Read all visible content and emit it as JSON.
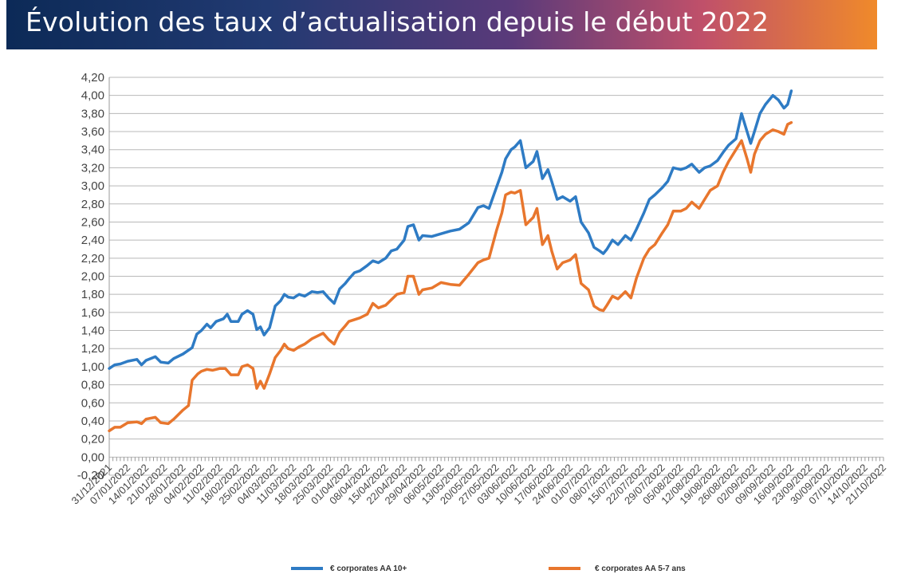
{
  "header": {
    "title": "Évolution des taux d’actualisation depuis le début 2022"
  },
  "chart_data": {
    "type": "line",
    "title": "Évolution des taux d’actualisation depuis le début 2022",
    "ylim": [
      -0.2,
      4.2
    ],
    "yticks": [
      "4,20",
      "4,00",
      "3,80",
      "3,60",
      "3,40",
      "3,20",
      "3,00",
      "2,80",
      "2,60",
      "2,40",
      "2,20",
      "2,00",
      "1,80",
      "1,60",
      "1,40",
      "1,20",
      "1,00",
      "0,80",
      "0,60",
      "0,40",
      "0,20",
      "0,00",
      "-0,20"
    ],
    "x_labels": [
      "31/12/2021",
      "07/01/2022",
      "14/01/2022",
      "21/01/2022",
      "28/01/2022",
      "04/02/2022",
      "11/02/2022",
      "18/02/2022",
      "25/02/2022",
      "04/03/2022",
      "11/03/2022",
      "18/03/2022",
      "25/03/2022",
      "01/04/2022",
      "08/04/2022",
      "15/04/2022",
      "22/04/2022",
      "29/04/2022",
      "06/05/2022",
      "13/05/2022",
      "20/05/2022",
      "27/05/2022",
      "03/06/2022",
      "10/06/2022",
      "17/06/2022",
      "24/06/2022",
      "01/07/2022",
      "08/07/2022",
      "15/07/2022",
      "22/07/2022",
      "29/07/2022",
      "05/08/2022",
      "12/08/2022",
      "19/08/2022",
      "26/08/2022",
      "02/09/2022",
      "09/09/2022",
      "16/09/2022",
      "23/09/2022",
      "30/09/2022",
      "07/10/2022",
      "14/10/2022",
      "21/10/2022"
    ],
    "grid": true,
    "legend_position": "bottom",
    "series": [
      {
        "name": "€ corporates AA 10+",
        "color": "#2e7bc4",
        "points": [
          [
            0,
            0.98
          ],
          [
            0.3,
            1.02
          ],
          [
            0.6,
            1.03
          ],
          [
            1,
            1.06
          ],
          [
            1.5,
            1.08
          ],
          [
            1.75,
            1.02
          ],
          [
            2,
            1.07
          ],
          [
            2.5,
            1.11
          ],
          [
            2.8,
            1.05
          ],
          [
            3.2,
            1.04
          ],
          [
            3.5,
            1.09
          ],
          [
            4,
            1.14
          ],
          [
            4.5,
            1.21
          ],
          [
            4.75,
            1.36
          ],
          [
            5,
            1.4
          ],
          [
            5.3,
            1.47
          ],
          [
            5.5,
            1.43
          ],
          [
            5.8,
            1.5
          ],
          [
            6.2,
            1.53
          ],
          [
            6.4,
            1.58
          ],
          [
            6.6,
            1.5
          ],
          [
            7,
            1.5
          ],
          [
            7.2,
            1.58
          ],
          [
            7.5,
            1.62
          ],
          [
            7.8,
            1.58
          ],
          [
            8,
            1.41
          ],
          [
            8.2,
            1.44
          ],
          [
            8.4,
            1.35
          ],
          [
            8.7,
            1.43
          ],
          [
            9,
            1.67
          ],
          [
            9.3,
            1.73
          ],
          [
            9.5,
            1.8
          ],
          [
            9.7,
            1.77
          ],
          [
            10,
            1.76
          ],
          [
            10.3,
            1.8
          ],
          [
            10.6,
            1.78
          ],
          [
            11,
            1.83
          ],
          [
            11.3,
            1.82
          ],
          [
            11.6,
            1.83
          ],
          [
            11.9,
            1.76
          ],
          [
            12.2,
            1.7
          ],
          [
            12.5,
            1.86
          ],
          [
            12.8,
            1.92
          ],
          [
            13,
            1.97
          ],
          [
            13.3,
            2.04
          ],
          [
            13.6,
            2.06
          ],
          [
            14,
            2.12
          ],
          [
            14.3,
            2.17
          ],
          [
            14.6,
            2.15
          ],
          [
            15,
            2.2
          ],
          [
            15.3,
            2.28
          ],
          [
            15.6,
            2.3
          ],
          [
            16,
            2.4
          ],
          [
            16.2,
            2.55
          ],
          [
            16.5,
            2.57
          ],
          [
            16.8,
            2.4
          ],
          [
            17,
            2.45
          ],
          [
            17.5,
            2.44
          ],
          [
            18,
            2.47
          ],
          [
            18.5,
            2.5
          ],
          [
            19,
            2.52
          ],
          [
            19.5,
            2.59
          ],
          [
            20,
            2.76
          ],
          [
            20.3,
            2.78
          ],
          [
            20.6,
            2.75
          ],
          [
            21,
            2.98
          ],
          [
            21.3,
            3.15
          ],
          [
            21.5,
            3.3
          ],
          [
            21.8,
            3.4
          ],
          [
            22,
            3.43
          ],
          [
            22.3,
            3.5
          ],
          [
            22.6,
            3.2
          ],
          [
            23,
            3.27
          ],
          [
            23.2,
            3.38
          ],
          [
            23.5,
            3.08
          ],
          [
            23.8,
            3.18
          ],
          [
            24,
            3.05
          ],
          [
            24.3,
            2.85
          ],
          [
            24.6,
            2.88
          ],
          [
            25,
            2.83
          ],
          [
            25.3,
            2.88
          ],
          [
            25.6,
            2.6
          ],
          [
            26,
            2.48
          ],
          [
            26.3,
            2.32
          ],
          [
            26.6,
            2.28
          ],
          [
            26.8,
            2.25
          ],
          [
            27,
            2.3
          ],
          [
            27.3,
            2.4
          ],
          [
            27.6,
            2.35
          ],
          [
            28,
            2.45
          ],
          [
            28.3,
            2.4
          ],
          [
            28.6,
            2.52
          ],
          [
            29,
            2.7
          ],
          [
            29.3,
            2.85
          ],
          [
            29.6,
            2.9
          ],
          [
            30,
            2.98
          ],
          [
            30.3,
            3.05
          ],
          [
            30.6,
            3.2
          ],
          [
            31,
            3.18
          ],
          [
            31.3,
            3.2
          ],
          [
            31.6,
            3.24
          ],
          [
            32,
            3.15
          ],
          [
            32.3,
            3.2
          ],
          [
            32.6,
            3.22
          ],
          [
            33,
            3.28
          ],
          [
            33.3,
            3.37
          ],
          [
            33.6,
            3.45
          ],
          [
            34,
            3.52
          ],
          [
            34.3,
            3.8
          ],
          [
            34.6,
            3.6
          ],
          [
            34.8,
            3.47
          ],
          [
            35,
            3.6
          ],
          [
            35.3,
            3.8
          ],
          [
            35.6,
            3.9
          ],
          [
            36,
            4.0
          ],
          [
            36.3,
            3.95
          ],
          [
            36.6,
            3.86
          ],
          [
            36.8,
            3.9
          ],
          [
            37,
            4.05
          ]
        ]
      },
      {
        "name": "€ corporates AA 5-7 ans",
        "color": "#e8762d",
        "points": [
          [
            0,
            0.29
          ],
          [
            0.3,
            0.33
          ],
          [
            0.6,
            0.33
          ],
          [
            1,
            0.38
          ],
          [
            1.5,
            0.39
          ],
          [
            1.75,
            0.37
          ],
          [
            2,
            0.42
          ],
          [
            2.5,
            0.44
          ],
          [
            2.8,
            0.38
          ],
          [
            3.2,
            0.37
          ],
          [
            3.5,
            0.42
          ],
          [
            4,
            0.52
          ],
          [
            4.3,
            0.57
          ],
          [
            4.5,
            0.85
          ],
          [
            4.8,
            0.92
          ],
          [
            5,
            0.95
          ],
          [
            5.3,
            0.97
          ],
          [
            5.6,
            0.96
          ],
          [
            6,
            0.98
          ],
          [
            6.3,
            0.98
          ],
          [
            6.6,
            0.91
          ],
          [
            7,
            0.91
          ],
          [
            7.2,
            1.0
          ],
          [
            7.5,
            1.02
          ],
          [
            7.8,
            0.98
          ],
          [
            8,
            0.76
          ],
          [
            8.2,
            0.84
          ],
          [
            8.4,
            0.76
          ],
          [
            8.7,
            0.92
          ],
          [
            9,
            1.1
          ],
          [
            9.3,
            1.18
          ],
          [
            9.5,
            1.25
          ],
          [
            9.7,
            1.2
          ],
          [
            10,
            1.18
          ],
          [
            10.3,
            1.22
          ],
          [
            10.6,
            1.25
          ],
          [
            11,
            1.31
          ],
          [
            11.3,
            1.34
          ],
          [
            11.6,
            1.37
          ],
          [
            11.9,
            1.3
          ],
          [
            12.2,
            1.25
          ],
          [
            12.5,
            1.38
          ],
          [
            12.8,
            1.45
          ],
          [
            13,
            1.5
          ],
          [
            13.3,
            1.52
          ],
          [
            13.6,
            1.54
          ],
          [
            14,
            1.58
          ],
          [
            14.3,
            1.7
          ],
          [
            14.6,
            1.65
          ],
          [
            15,
            1.68
          ],
          [
            15.3,
            1.74
          ],
          [
            15.6,
            1.8
          ],
          [
            16,
            1.82
          ],
          [
            16.2,
            2.0
          ],
          [
            16.5,
            2.0
          ],
          [
            16.8,
            1.8
          ],
          [
            17,
            1.85
          ],
          [
            17.5,
            1.87
          ],
          [
            18,
            1.93
          ],
          [
            18.5,
            1.91
          ],
          [
            19,
            1.9
          ],
          [
            19.5,
            2.02
          ],
          [
            20,
            2.15
          ],
          [
            20.3,
            2.18
          ],
          [
            20.6,
            2.2
          ],
          [
            21,
            2.5
          ],
          [
            21.3,
            2.7
          ],
          [
            21.5,
            2.9
          ],
          [
            21.8,
            2.93
          ],
          [
            22,
            2.92
          ],
          [
            22.3,
            2.95
          ],
          [
            22.6,
            2.57
          ],
          [
            23,
            2.65
          ],
          [
            23.2,
            2.75
          ],
          [
            23.5,
            2.35
          ],
          [
            23.8,
            2.45
          ],
          [
            24,
            2.28
          ],
          [
            24.3,
            2.08
          ],
          [
            24.6,
            2.15
          ],
          [
            25,
            2.18
          ],
          [
            25.3,
            2.24
          ],
          [
            25.6,
            1.92
          ],
          [
            26,
            1.85
          ],
          [
            26.3,
            1.67
          ],
          [
            26.6,
            1.63
          ],
          [
            26.8,
            1.62
          ],
          [
            27,
            1.68
          ],
          [
            27.3,
            1.78
          ],
          [
            27.6,
            1.75
          ],
          [
            28,
            1.83
          ],
          [
            28.3,
            1.76
          ],
          [
            28.6,
            1.98
          ],
          [
            29,
            2.2
          ],
          [
            29.3,
            2.3
          ],
          [
            29.6,
            2.35
          ],
          [
            30,
            2.48
          ],
          [
            30.3,
            2.57
          ],
          [
            30.6,
            2.72
          ],
          [
            31,
            2.72
          ],
          [
            31.3,
            2.75
          ],
          [
            31.6,
            2.82
          ],
          [
            32,
            2.75
          ],
          [
            32.3,
            2.85
          ],
          [
            32.6,
            2.95
          ],
          [
            33,
            3.0
          ],
          [
            33.3,
            3.15
          ],
          [
            33.6,
            3.27
          ],
          [
            34,
            3.4
          ],
          [
            34.3,
            3.5
          ],
          [
            34.6,
            3.3
          ],
          [
            34.8,
            3.15
          ],
          [
            35,
            3.35
          ],
          [
            35.3,
            3.5
          ],
          [
            35.6,
            3.57
          ],
          [
            36,
            3.62
          ],
          [
            36.3,
            3.6
          ],
          [
            36.6,
            3.57
          ],
          [
            36.8,
            3.68
          ],
          [
            37,
            3.7
          ]
        ]
      }
    ]
  }
}
